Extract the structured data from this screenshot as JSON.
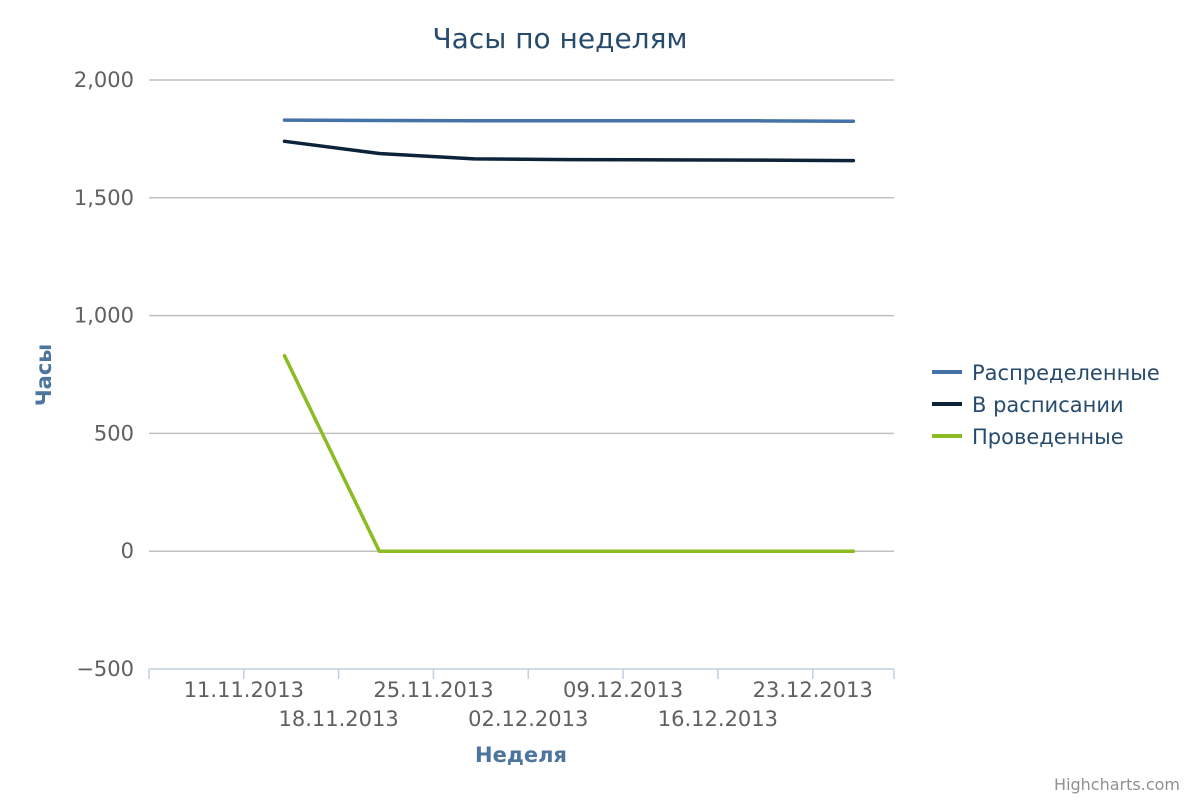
{
  "chart_data": {
    "type": "line",
    "title": "Часы по неделям",
    "xlabel": "Неделя",
    "ylabel": "Часы",
    "ylim": [
      -500,
      2000
    ],
    "yticks": [
      "−500",
      "0",
      "500",
      "1,000",
      "1,500",
      "2,000"
    ],
    "ytick_values": [
      -500,
      0,
      500,
      1000,
      1500,
      2000
    ],
    "xticks": [
      "11.11.2013",
      "18.11.2013",
      "25.11.2013",
      "02.12.2013",
      "09.12.2013",
      "16.12.2013",
      "23.12.2013"
    ],
    "x": [
      "2013-11-14",
      "2013-11-21",
      "2013-11-28",
      "2013-12-05",
      "2013-12-12",
      "2013-12-19",
      "2013-12-26"
    ],
    "series": [
      {
        "name": "Распределенные",
        "color": "#4572a7",
        "values": [
          1830,
          1828,
          1827,
          1827,
          1827,
          1827,
          1825
        ]
      },
      {
        "name": "В расписании",
        "color": "#0d233a",
        "values": [
          1740,
          1688,
          1665,
          1662,
          1661,
          1660,
          1658
        ]
      },
      {
        "name": "Проведенные",
        "color": "#8bbc21",
        "values": [
          830,
          0,
          0,
          0,
          0,
          0,
          0
        ]
      }
    ],
    "grid": true,
    "legend_position": "right"
  },
  "credit": "Highcharts.com"
}
